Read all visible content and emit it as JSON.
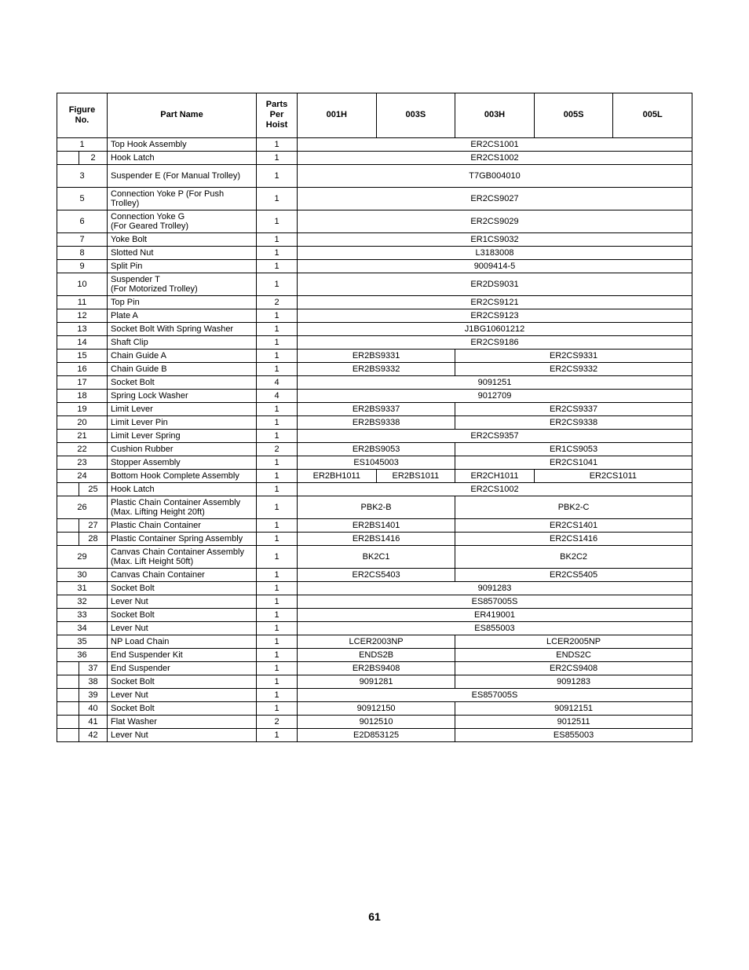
{
  "page_number": "61",
  "headers": {
    "figure_no": "Figure\nNo.",
    "part_name": "Part Name",
    "qty": "Parts\nPer\nHoist",
    "models": [
      "001H",
      "003S",
      "003H",
      "005S",
      "005L"
    ]
  },
  "rows": [
    {
      "fig": [
        1,
        null
      ],
      "name": "Top Hook Assembly",
      "qty": 1,
      "codes": {
        "span5": "ER2CS1001"
      }
    },
    {
      "fig": [
        null,
        2
      ],
      "name": "Hook Latch",
      "qty": 1,
      "codes": {
        "span5": "ER2CS1002"
      }
    },
    {
      "fig": [
        3,
        null
      ],
      "name": "Suspender E (For Manual Trolley)",
      "tall": true,
      "qty": 1,
      "codes": {
        "span5": "T7GB004010"
      }
    },
    {
      "fig": [
        5,
        null
      ],
      "name": "Connection Yoke P (For Push Trolley)",
      "qty": 1,
      "codes": {
        "span5": "ER2CS9027"
      }
    },
    {
      "fig": [
        6,
        null
      ],
      "name": "Connection Yoke G\n(For Geared Trolley)",
      "qty": 1,
      "codes": {
        "span5": "ER2CS9029"
      }
    },
    {
      "fig": [
        7,
        null
      ],
      "name": "Yoke Bolt",
      "qty": 1,
      "codes": {
        "span5": "ER1CS9032"
      }
    },
    {
      "fig": [
        8,
        null
      ],
      "name": "Slotted Nut",
      "qty": 1,
      "codes": {
        "span5": "L3183008"
      }
    },
    {
      "fig": [
        9,
        null
      ],
      "name": "Split Pin",
      "qty": 1,
      "codes": {
        "span5": "9009414-5"
      }
    },
    {
      "fig": [
        10,
        null
      ],
      "name": "Suspender T\n(For Motorized Trolley)",
      "qty": 1,
      "codes": {
        "span5": "ER2DS9031"
      }
    },
    {
      "fig": [
        11,
        null
      ],
      "name": "Top Pin",
      "qty": 2,
      "codes": {
        "span5": "ER2CS9121"
      }
    },
    {
      "fig": [
        12,
        null
      ],
      "name": "Plate A",
      "qty": 1,
      "codes": {
        "span5": "ER2CS9123"
      }
    },
    {
      "fig": [
        13,
        null
      ],
      "name": "Socket Bolt With Spring Washer",
      "qty": 1,
      "codes": {
        "span5": "J1BG10601212"
      }
    },
    {
      "fig": [
        14,
        null
      ],
      "name": "Shaft Clip",
      "qty": 1,
      "codes": {
        "span5": "ER2CS9186"
      }
    },
    {
      "fig": [
        15,
        null
      ],
      "name": "Chain Guide A",
      "qty": 1,
      "codes": {
        "left2": "ER2BS9331",
        "right3": "ER2CS9331"
      }
    },
    {
      "fig": [
        16,
        null
      ],
      "name": "Chain Guide B",
      "qty": 1,
      "codes": {
        "left2": "ER2BS9332",
        "right3": "ER2CS9332"
      }
    },
    {
      "fig": [
        17,
        null
      ],
      "name": "Socket Bolt",
      "qty": 4,
      "codes": {
        "span5": "9091251"
      }
    },
    {
      "fig": [
        18,
        null
      ],
      "name": "Spring Lock Washer",
      "qty": 4,
      "codes": {
        "span5": "9012709"
      }
    },
    {
      "fig": [
        19,
        null
      ],
      "name": "Limit Lever",
      "qty": 1,
      "codes": {
        "left2": "ER2BS9337",
        "right3": "ER2CS9337"
      }
    },
    {
      "fig": [
        20,
        null
      ],
      "name": "Limit Lever Pin",
      "qty": 1,
      "codes": {
        "left2": "ER2BS9338",
        "right3": "ER2CS9338"
      }
    },
    {
      "fig": [
        21,
        null
      ],
      "name": "Limit Lever Spring",
      "qty": 1,
      "codes": {
        "span5": "ER2CS9357"
      }
    },
    {
      "fig": [
        22,
        null
      ],
      "name": "Cushion Rubber",
      "qty": 2,
      "codes": {
        "left2": "ER2BS9053",
        "right3": "ER1CS9053"
      }
    },
    {
      "fig": [
        23,
        null
      ],
      "name": "Stopper Assembly",
      "qty": 1,
      "codes": {
        "left2": "ES1045003",
        "right3": "ER2CS1041"
      }
    },
    {
      "fig": [
        24,
        null
      ],
      "name": "Bottom Hook Complete Assembly",
      "qty": 1,
      "codes": {
        "c1": "ER2BH1011",
        "c2": "ER2BS1011",
        "c3": "ER2CH1011",
        "c45": "ER2CS1011"
      }
    },
    {
      "fig": [
        null,
        25
      ],
      "name": "Hook Latch",
      "qty": 1,
      "codes": {
        "span5": "ER2CS1002"
      }
    },
    {
      "fig": [
        26,
        null
      ],
      "name": "Plastic Chain Container Assembly (Max. Lifting Height 20ft)",
      "qty": 1,
      "codes": {
        "left2": "PBK2-B",
        "right3": "PBK2-C"
      }
    },
    {
      "fig": [
        null,
        27
      ],
      "name": "Plastic Chain Container",
      "qty": 1,
      "codes": {
        "left2": "ER2BS1401",
        "right3": "ER2CS1401"
      }
    },
    {
      "fig": [
        null,
        28
      ],
      "name": "Plastic Container Spring Assembly",
      "qty": 1,
      "codes": {
        "left2": "ER2BS1416",
        "right3": "ER2CS1416"
      }
    },
    {
      "fig": [
        29,
        null
      ],
      "name": "Canvas Chain Container Assembly (Max. Lift Height 50ft)",
      "qty": 1,
      "codes": {
        "left2": "BK2C1",
        "right3": "BK2C2"
      }
    },
    {
      "fig": [
        30,
        null
      ],
      "name": "Canvas Chain Container",
      "qty": 1,
      "codes": {
        "left2": "ER2CS5403",
        "right3": "ER2CS5405"
      }
    },
    {
      "fig": [
        31,
        null
      ],
      "name": "Socket Bolt",
      "qty": 1,
      "codes": {
        "span5": "9091283"
      }
    },
    {
      "fig": [
        32,
        null
      ],
      "name": "Lever Nut",
      "qty": 1,
      "codes": {
        "span5": "ES857005S"
      }
    },
    {
      "fig": [
        33,
        null
      ],
      "name": "Socket Bolt",
      "qty": 1,
      "codes": {
        "span5": "ER419001"
      }
    },
    {
      "fig": [
        34,
        null
      ],
      "name": "Lever Nut",
      "qty": 1,
      "codes": {
        "span5": "ES855003"
      }
    },
    {
      "fig": [
        35,
        null
      ],
      "name": "NP Load Chain",
      "qty": 1,
      "codes": {
        "left2": "LCER2003NP",
        "right3": "LCER2005NP"
      }
    },
    {
      "fig": [
        36,
        null
      ],
      "name": "End Suspender Kit",
      "qty": 1,
      "codes": {
        "left2": "ENDS2B",
        "right3": "ENDS2C"
      }
    },
    {
      "fig": [
        null,
        37
      ],
      "name": "End Suspender",
      "qty": 1,
      "codes": {
        "left2": "ER2BS9408",
        "right3": "ER2CS9408"
      }
    },
    {
      "fig": [
        null,
        38
      ],
      "name": "Socket Bolt",
      "qty": 1,
      "codes": {
        "left2": "9091281",
        "right3": "9091283"
      }
    },
    {
      "fig": [
        null,
        39
      ],
      "name": "Lever Nut",
      "qty": 1,
      "codes": {
        "span5": "ES857005S"
      }
    },
    {
      "fig": [
        null,
        40
      ],
      "name": "Socket Bolt",
      "qty": 1,
      "codes": {
        "left2": "90912150",
        "right3": "90912151"
      }
    },
    {
      "fig": [
        null,
        41
      ],
      "name": "Flat Washer",
      "qty": 2,
      "codes": {
        "left2": "9012510",
        "right3": "9012511"
      }
    },
    {
      "fig": [
        null,
        42
      ],
      "name": "Lever Nut",
      "qty": 1,
      "codes": {
        "left2": "E2D853125",
        "right3": "ES855003"
      }
    }
  ]
}
